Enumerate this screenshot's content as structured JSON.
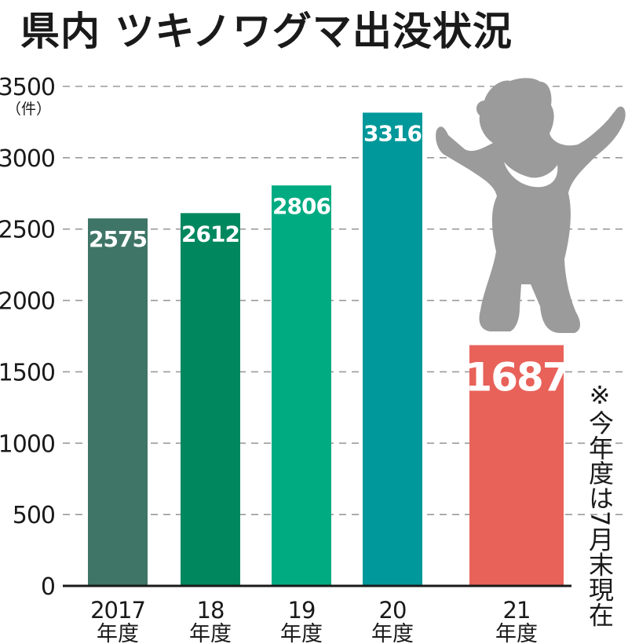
{
  "title": "県内 ツキノワグマ出没状況",
  "chart_data": {
    "type": "bar",
    "title": "県内 ツキノワグマ出没状況",
    "unit": "（件）",
    "categories": [
      {
        "top": "2017",
        "bottom": "年度"
      },
      {
        "top": "18",
        "bottom": "年度"
      },
      {
        "top": "19",
        "bottom": "年度"
      },
      {
        "top": "20",
        "bottom": "年度"
      },
      {
        "top": "21",
        "bottom": "年度"
      }
    ],
    "values": [
      2575,
      2612,
      2806,
      3316,
      1687
    ],
    "value_labels": [
      "2575",
      "2612",
      "2806",
      "3316",
      "1687"
    ],
    "bar_colors": [
      "#3f7566",
      "#00875e",
      "#00ab82",
      "#00989a",
      "#e8625a"
    ],
    "ylim": [
      0,
      3500
    ],
    "yticks": [
      "0",
      "500",
      "1000",
      "1500",
      "2000",
      "2500",
      "3000",
      "3500"
    ],
    "ytick_values": [
      0,
      500,
      1000,
      1500,
      2000,
      2500,
      3000,
      3500
    ],
    "grid": true,
    "note": "※今年度は7月末現在"
  },
  "bear_color": "#9b9b9b",
  "bear_icon": "bear-icon"
}
